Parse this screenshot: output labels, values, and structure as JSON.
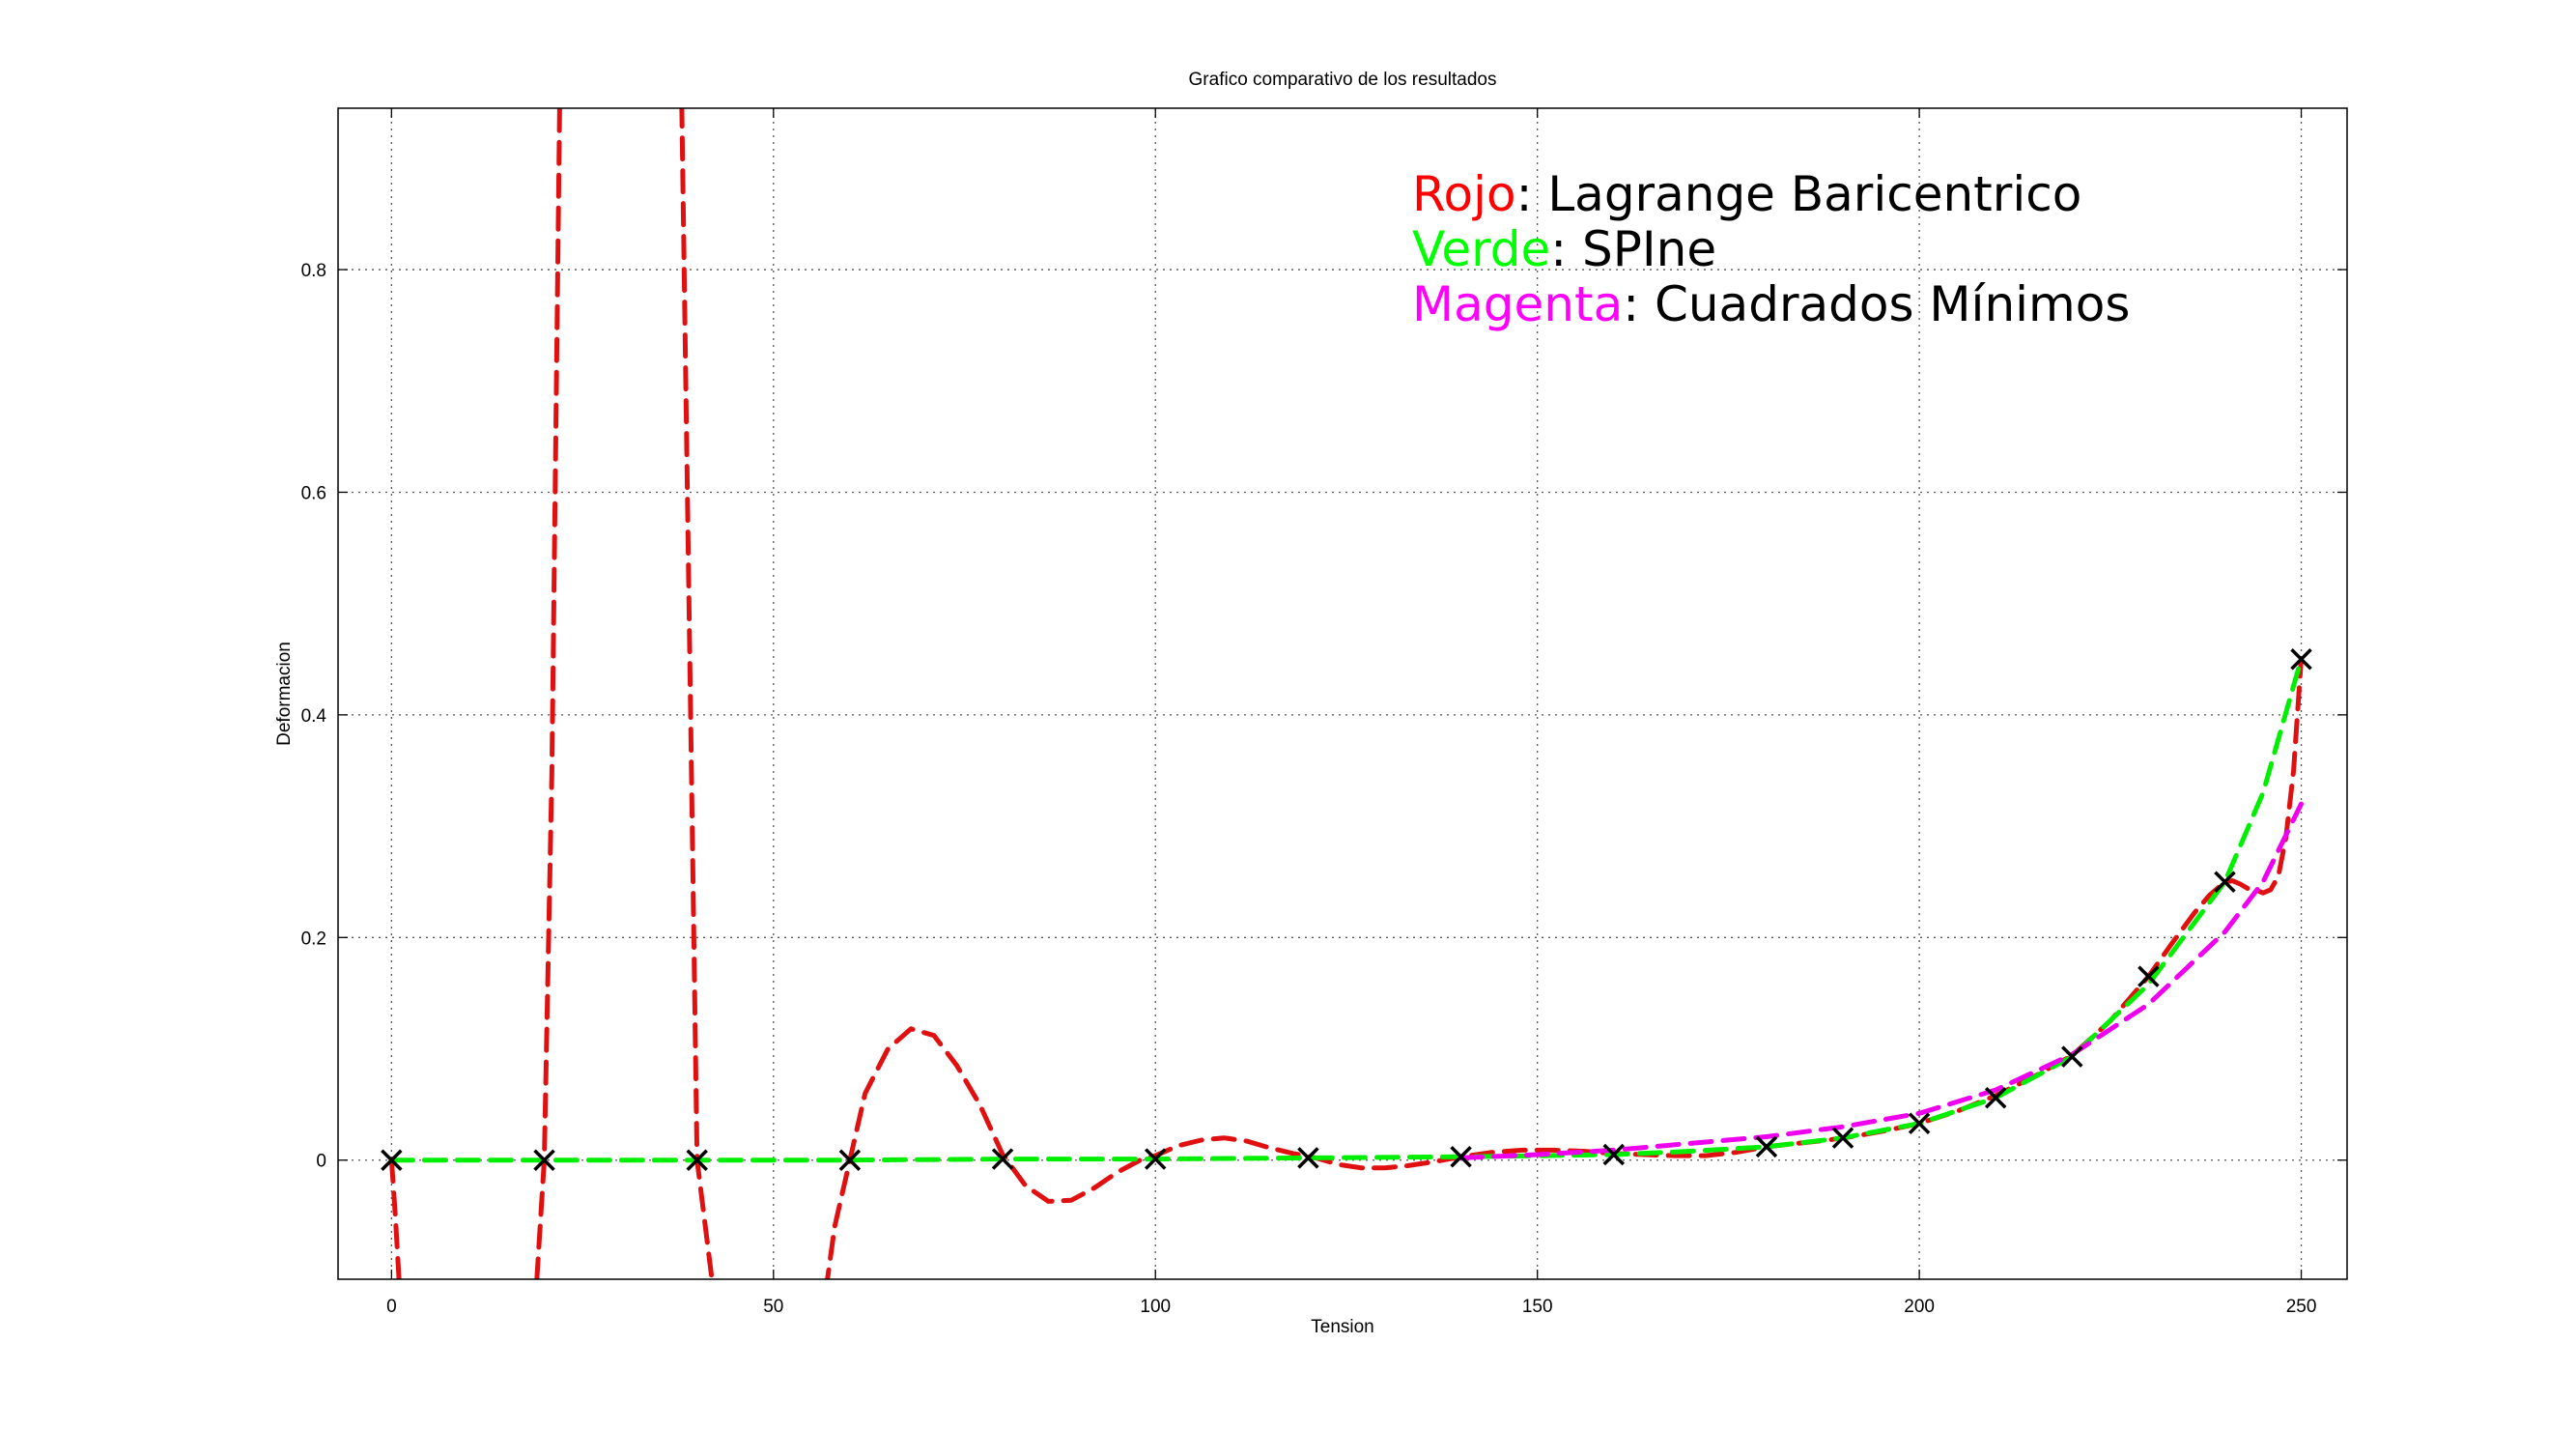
{
  "chart_data": {
    "type": "line",
    "title": "Grafico comparativo de los resultados",
    "xlabel": "Tension",
    "ylabel": "Deformacion",
    "xlim": [
      -7,
      256
    ],
    "ylim": [
      -0.107,
      0.945
    ],
    "xticks": [
      0,
      50,
      100,
      150,
      200,
      250
    ],
    "yticks": [
      0,
      0.2,
      0.4,
      0.6,
      0.8
    ],
    "xtick_labels": [
      "0",
      "50",
      "100",
      "150",
      "200",
      "250"
    ],
    "ytick_labels": [
      "0",
      "0.2",
      "0.4",
      "0.6",
      "0.8"
    ],
    "grid": true,
    "annotation": {
      "lines": [
        {
          "colored": "Rojo",
          "rest": ": Lagrange Baricentrico",
          "color": "#ff0000"
        },
        {
          "colored": "Verde",
          "rest": ": SPIne",
          "color": "#00ff00"
        },
        {
          "colored": "Magenta",
          "rest": ": Cuadrados Mínimos",
          "color": "#ff00ff"
        }
      ]
    },
    "series": [
      {
        "key": "lagrange",
        "color": "#e01010",
        "style": "dashed",
        "x": [
          0,
          0.5,
          1,
          19,
          20,
          21,
          22,
          24,
          36,
          38,
          40,
          42,
          55,
          57,
          58,
          60,
          62,
          65,
          68,
          71,
          74,
          77,
          80,
          83,
          86,
          89,
          92,
          95,
          98,
          100,
          103,
          106,
          109,
          112,
          115,
          118,
          121,
          124,
          127,
          130,
          133,
          136,
          140,
          144,
          148,
          152,
          156,
          160,
          164,
          168,
          172,
          176,
          180,
          184,
          188,
          192,
          196,
          200,
          205,
          210,
          215,
          220,
          225,
          230,
          233,
          236,
          238,
          239,
          240,
          241,
          242,
          243,
          244,
          245,
          246,
          247,
          248,
          249,
          250
        ],
        "y": [
          0,
          -0.05,
          -0.11,
          -0.11,
          0,
          0.35,
          0.945,
          1.5,
          1.5,
          0.945,
          0,
          -0.11,
          -0.2,
          -0.11,
          -0.06,
          0,
          0.06,
          0.1,
          0.118,
          0.112,
          0.085,
          0.05,
          0.005,
          -0.023,
          -0.037,
          -0.036,
          -0.025,
          -0.011,
          0,
          0.004,
          0.013,
          0.018,
          0.02,
          0.017,
          0.011,
          0.006,
          0.002,
          -0.004,
          -0.007,
          -0.007,
          -0.005,
          -0.002,
          0.003,
          0.007,
          0.009,
          0.009,
          0.008,
          0.006,
          0.005,
          0.004,
          0.004,
          0.007,
          0.012,
          0.015,
          0.018,
          0.022,
          0.027,
          0.033,
          0.044,
          0.058,
          0.075,
          0.094,
          0.125,
          0.165,
          0.194,
          0.222,
          0.238,
          0.244,
          0.25,
          0.251,
          0.248,
          0.244,
          0.243,
          0.24,
          0.243,
          0.255,
          0.29,
          0.35,
          0.45
        ]
      },
      {
        "key": "spline",
        "color": "#00ee00",
        "style": "dashed",
        "x": [
          0,
          20,
          40,
          60,
          80,
          100,
          120,
          140,
          160,
          170,
          180,
          190,
          200,
          210,
          220,
          230,
          240,
          245,
          250
        ],
        "y": [
          0,
          0,
          0,
          0,
          0.001,
          0.001,
          0.002,
          0.003,
          0.005,
          0.008,
          0.012,
          0.02,
          0.033,
          0.056,
          0.093,
          0.158,
          0.25,
          0.33,
          0.45
        ]
      },
      {
        "key": "cuadrados",
        "color": "#ee00ee",
        "style": "dashed",
        "x": [
          140,
          150,
          160,
          170,
          180,
          190,
          200,
          210,
          220,
          230,
          240,
          245,
          250
        ],
        "y": [
          0.002,
          0.005,
          0.009,
          0.015,
          0.021,
          0.03,
          0.042,
          0.063,
          0.095,
          0.14,
          0.205,
          0.25,
          0.32
        ]
      }
    ],
    "points": {
      "color": "#000000",
      "marker": "x",
      "x": [
        0,
        20,
        40,
        60,
        80,
        100,
        120,
        140,
        160,
        180,
        190,
        200,
        210,
        220,
        230,
        240,
        250
      ],
      "y": [
        0,
        0,
        0,
        0,
        0.001,
        0.001,
        0.002,
        0.003,
        0.005,
        0.012,
        0.02,
        0.033,
        0.056,
        0.093,
        0.165,
        0.25,
        0.45
      ]
    }
  }
}
